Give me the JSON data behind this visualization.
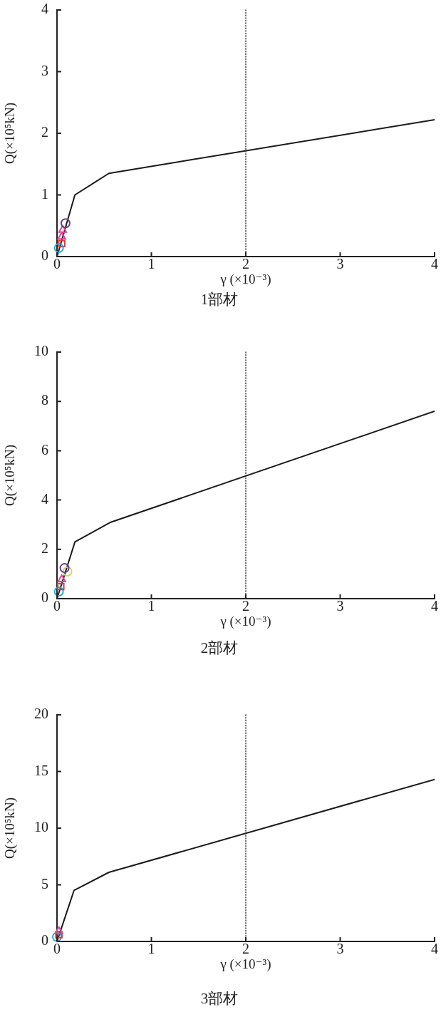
{
  "chart_data": [
    {
      "type": "line",
      "title": "1部材",
      "xlabel": "γ (×10⁻³)",
      "ylabel": "Q(×10⁵kN)",
      "xlim": [
        0,
        4
      ],
      "xticks": [
        0,
        1,
        2,
        3,
        4
      ],
      "ylim": [
        0,
        4
      ],
      "yticks": [
        0,
        1,
        2,
        3,
        4
      ],
      "ref_lines": [
        {
          "axis": "x",
          "value": 2,
          "line_style": "dotted",
          "color": "#222222"
        }
      ],
      "series": [
        {
          "type": "line",
          "color": "#1a1a1a",
          "marker": "none",
          "x": [
            0,
            0.19,
            0.55,
            4
          ],
          "values": [
            0,
            1.0,
            1.35,
            2.22
          ]
        },
        {
          "type": "scatter",
          "color": "#6a3d8f",
          "marker": "circle",
          "x": [
            0.09
          ],
          "values": [
            0.54
          ]
        },
        {
          "type": "scatter",
          "color": "#2aa7d6",
          "marker": "circle",
          "x": [
            0.02
          ],
          "values": [
            0.14
          ]
        },
        {
          "type": "scatter",
          "color": "#e0459a",
          "marker": "triangle",
          "x": [
            0.06,
            0.05
          ],
          "values": [
            0.43,
            0.32
          ]
        },
        {
          "type": "scatter",
          "color": "#d83a3a",
          "marker": "square",
          "x": [
            0.05
          ],
          "values": [
            0.21
          ]
        }
      ]
    },
    {
      "type": "line",
      "title": "2部材",
      "xlabel": "γ (×10⁻³)",
      "ylabel": "Q(×10⁵kN)",
      "xlim": [
        0,
        4
      ],
      "xticks": [
        0,
        1,
        2,
        3,
        4
      ],
      "ylim": [
        0,
        10
      ],
      "yticks": [
        0,
        2,
        4,
        6,
        8,
        10
      ],
      "ref_lines": [
        {
          "axis": "x",
          "value": 2,
          "line_style": "dotted",
          "color": "#222222"
        }
      ],
      "series": [
        {
          "type": "line",
          "color": "#1a1a1a",
          "marker": "none",
          "x": [
            0,
            0.19,
            0.57,
            4
          ],
          "values": [
            0,
            2.3,
            3.1,
            7.6
          ]
        },
        {
          "type": "scatter",
          "color": "#6a3d8f",
          "marker": "circle",
          "x": [
            0.08
          ],
          "values": [
            1.24
          ]
        },
        {
          "type": "scatter",
          "color": "#c8d86a",
          "marker": "circle",
          "x": [
            0.11
          ],
          "values": [
            1.1
          ]
        },
        {
          "type": "scatter",
          "color": "#e0459a",
          "marker": "triangle",
          "x": [
            0.05
          ],
          "values": [
            0.78
          ]
        },
        {
          "type": "scatter",
          "color": "#d83a3a",
          "marker": "square",
          "x": [
            0.04
          ],
          "values": [
            0.49
          ]
        },
        {
          "type": "scatter",
          "color": "#2aa7d6",
          "marker": "circle",
          "x": [
            0.02
          ],
          "values": [
            0.29
          ]
        }
      ]
    },
    {
      "type": "line",
      "title": "3部材",
      "xlabel": "γ (×10⁻³)",
      "ylabel": "Q(×10⁵kN)",
      "xlim": [
        0,
        4
      ],
      "xticks": [
        0,
        1,
        2,
        3,
        4
      ],
      "ylim": [
        0,
        20
      ],
      "yticks": [
        0,
        5,
        10,
        15,
        20
      ],
      "ref_lines": [
        {
          "axis": "x",
          "value": 2,
          "line_style": "dotted",
          "color": "#222222"
        }
      ],
      "series": [
        {
          "type": "line",
          "color": "#1a1a1a",
          "marker": "none",
          "x": [
            0,
            0.18,
            0.55,
            4
          ],
          "values": [
            0,
            4.5,
            6.1,
            14.3
          ]
        },
        {
          "type": "scatter",
          "color": "#e0459a",
          "marker": "triangle",
          "x": [
            0.02
          ],
          "values": [
            0.9
          ]
        },
        {
          "type": "scatter",
          "color": "#d83a3a",
          "marker": "square",
          "x": [
            0.02
          ],
          "values": [
            0.6
          ]
        },
        {
          "type": "scatter",
          "color": "#2aa7d6",
          "marker": "circle",
          "x": [
            0.0
          ],
          "values": [
            0.4
          ]
        }
      ]
    }
  ]
}
